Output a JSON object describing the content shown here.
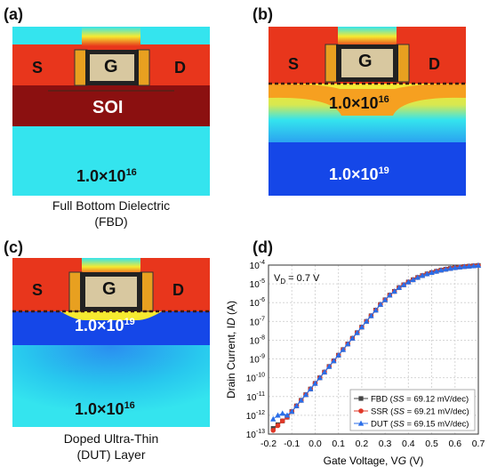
{
  "panels": {
    "a": {
      "label": "(a)",
      "source": "S",
      "gate": "G",
      "drain": "D",
      "layer": "SOI",
      "doping": {
        "mantissa": "1.0×10",
        "exp": "16"
      },
      "caption": [
        "Full Bottom Dielectric",
        "(FBD)"
      ]
    },
    "b": {
      "label": "(b)",
      "source": "S",
      "gate": "G",
      "drain": "D",
      "upper_doping": {
        "mantissa": "1.0×10",
        "exp": "16"
      },
      "lower_doping": {
        "mantissa": "1.0×10",
        "exp": "19"
      }
    },
    "c": {
      "label": "(c)",
      "source": "S",
      "gate": "G",
      "drain": "D",
      "upper_doping": {
        "mantissa": "1.0×10",
        "exp": "19"
      },
      "lower_doping": {
        "mantissa": "1.0×10",
        "exp": "16"
      },
      "caption": [
        "Doped Ultra-Thin",
        "(DUT) Layer"
      ]
    },
    "d": {
      "label": "(d)"
    }
  },
  "colors": {
    "red": "#e8361c",
    "dark_red": "#8b1010",
    "cyan": "#34e4ee",
    "blue": "#1547e8",
    "gate_fill": "#d8c8a0",
    "spacer": "#e8a020",
    "yellow": "#f6ea30"
  },
  "chart_data": {
    "type": "line",
    "xlabel": "Gate Voltage, V",
    "xlabel_sub": "G",
    "xlabel_unit": " (V)",
    "ylabel": "Drain Current, I",
    "ylabel_sub": "D",
    "ylabel_unit": " (A)",
    "annotation": "V",
    "annotation_sub": "D",
    "annotation_rest": " = 0.7 V",
    "xlim": [
      -0.2,
      0.7
    ],
    "xticks": [
      "-0.2",
      "-0.1",
      "0.0",
      "0.1",
      "0.2",
      "0.3",
      "0.4",
      "0.5",
      "0.6",
      "0.7"
    ],
    "ylim_log10": [
      -13,
      -4
    ],
    "yticks_exp": [
      "-13",
      "-12",
      "-11",
      "-10",
      "-9",
      "-8",
      "-7",
      "-6",
      "-5",
      "-4"
    ],
    "ytick_base": "10",
    "log_y": true,
    "grid": true,
    "legend_position": "bottom-right",
    "x": [
      -0.18,
      -0.16,
      -0.14,
      -0.12,
      -0.1,
      -0.08,
      -0.06,
      -0.04,
      -0.02,
      0.0,
      0.02,
      0.04,
      0.06,
      0.08,
      0.1,
      0.12,
      0.14,
      0.16,
      0.18,
      0.2,
      0.22,
      0.24,
      0.26,
      0.28,
      0.3,
      0.32,
      0.34,
      0.36,
      0.38,
      0.4,
      0.42,
      0.44,
      0.46,
      0.48,
      0.5,
      0.52,
      0.54,
      0.56,
      0.58,
      0.6,
      0.62,
      0.64,
      0.66,
      0.68,
      0.7
    ],
    "series": [
      {
        "name": "FBD",
        "ss": "69.12 mV/dec",
        "color": "#444444",
        "marker": "square",
        "log10_values": [
          -12.7,
          -12.5,
          -12.3,
          -12.1,
          -11.8,
          -11.5,
          -11.2,
          -10.9,
          -10.6,
          -10.3,
          -10.0,
          -9.7,
          -9.4,
          -9.1,
          -8.8,
          -8.5,
          -8.2,
          -7.9,
          -7.6,
          -7.3,
          -7.0,
          -6.7,
          -6.4,
          -6.1,
          -5.85,
          -5.6,
          -5.4,
          -5.2,
          -5.05,
          -4.9,
          -4.78,
          -4.66,
          -4.56,
          -4.47,
          -4.4,
          -4.33,
          -4.27,
          -4.22,
          -4.18,
          -4.14,
          -4.11,
          -4.08,
          -4.06,
          -4.04,
          -4.02
        ]
      },
      {
        "name": "SSR",
        "ss": "69.21 mV/dec",
        "color": "#e03828",
        "marker": "circle",
        "log10_values": [
          -12.8,
          -12.55,
          -12.3,
          -12.1,
          -11.8,
          -11.5,
          -11.2,
          -10.9,
          -10.6,
          -10.3,
          -10.0,
          -9.7,
          -9.4,
          -9.1,
          -8.8,
          -8.5,
          -8.2,
          -7.9,
          -7.6,
          -7.3,
          -7.0,
          -6.7,
          -6.4,
          -6.1,
          -5.85,
          -5.6,
          -5.4,
          -5.2,
          -5.05,
          -4.9,
          -4.78,
          -4.66,
          -4.56,
          -4.47,
          -4.4,
          -4.33,
          -4.27,
          -4.22,
          -4.18,
          -4.14,
          -4.11,
          -4.08,
          -4.06,
          -4.04,
          -4.02
        ]
      },
      {
        "name": "DUT",
        "ss": "69.15 mV/dec",
        "color": "#2a6ee8",
        "marker": "triangle",
        "log10_values": [
          -12.2,
          -12.0,
          -11.9,
          -12.0,
          -11.8,
          -11.5,
          -11.2,
          -10.9,
          -10.6,
          -10.3,
          -10.0,
          -9.7,
          -9.4,
          -9.1,
          -8.8,
          -8.5,
          -8.2,
          -7.9,
          -7.6,
          -7.3,
          -7.0,
          -6.7,
          -6.4,
          -6.1,
          -5.85,
          -5.6,
          -5.4,
          -5.2,
          -5.05,
          -4.9,
          -4.78,
          -4.66,
          -4.56,
          -4.47,
          -4.4,
          -4.33,
          -4.27,
          -4.22,
          -4.18,
          -4.14,
          -4.11,
          -4.08,
          -4.06,
          -4.04,
          -4.02
        ]
      }
    ]
  }
}
